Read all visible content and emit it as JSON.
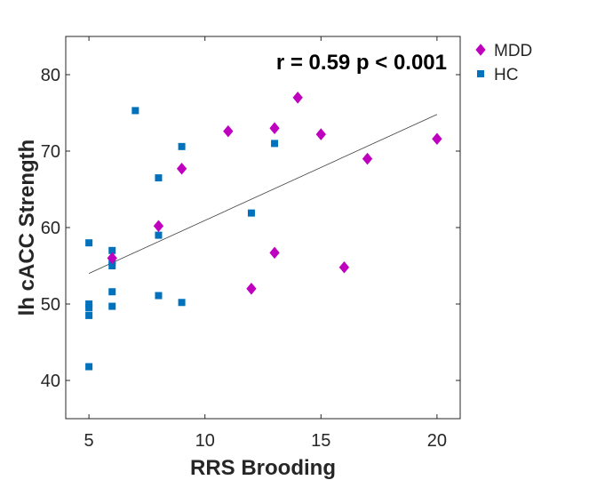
{
  "chart_data": {
    "type": "scatter",
    "annotation": "r = 0.59 p < 0.001",
    "xlabel": "RRS Brooding",
    "ylabel": "lh cACC Strength",
    "xlim": [
      4,
      21
    ],
    "ylim": [
      35,
      85
    ],
    "xticks": [
      5,
      10,
      15,
      20
    ],
    "yticks": [
      40,
      50,
      60,
      70,
      80
    ],
    "grid": false,
    "legend_position": "outside-top-right",
    "series": [
      {
        "name": "MDD",
        "marker": "diamond",
        "color": "#bf00bf",
        "points": [
          [
            6,
            56.0
          ],
          [
            8,
            60.2
          ],
          [
            9,
            67.7
          ],
          [
            11,
            72.6
          ],
          [
            12,
            52.0
          ],
          [
            13,
            73.0
          ],
          [
            13,
            56.7
          ],
          [
            14,
            77.0
          ],
          [
            15,
            72.2
          ],
          [
            16,
            54.8
          ],
          [
            17,
            69.0
          ],
          [
            20,
            71.6
          ]
        ]
      },
      {
        "name": "HC",
        "marker": "square",
        "color": "#0072bd",
        "points": [
          [
            5,
            58.0
          ],
          [
            5,
            50.0
          ],
          [
            5,
            49.5
          ],
          [
            5,
            48.5
          ],
          [
            5,
            41.8
          ],
          [
            6,
            57.0
          ],
          [
            6,
            55.5
          ],
          [
            6,
            55.0
          ],
          [
            6,
            51.6
          ],
          [
            6,
            49.7
          ],
          [
            7,
            75.3
          ],
          [
            8,
            66.5
          ],
          [
            8,
            59.0
          ],
          [
            8,
            51.1
          ],
          [
            9,
            70.6
          ],
          [
            9,
            50.2
          ],
          [
            12,
            61.9
          ],
          [
            13,
            71.0
          ]
        ]
      }
    ],
    "regression_line": {
      "x": [
        5,
        20
      ],
      "y": [
        54.0,
        74.8
      ],
      "color": "#404040"
    }
  }
}
